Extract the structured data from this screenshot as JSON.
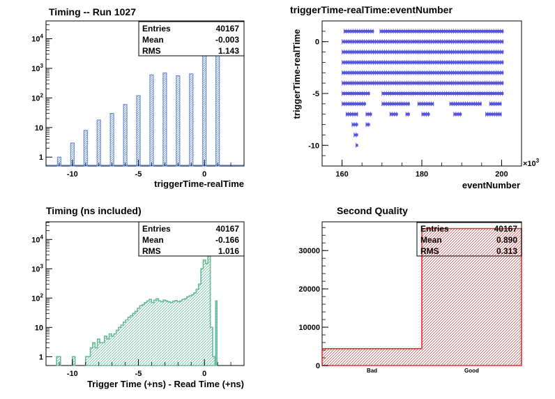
{
  "chart_data": [
    {
      "id": "p1",
      "type": "bar",
      "title": "Timing -- Run 1027",
      "xlabel": "triggerTime-realTime",
      "ylabel": "",
      "xlim": [
        -12,
        3
      ],
      "ylim": [
        0.5,
        40000
      ],
      "log_y": true,
      "grid": false,
      "bar_color": "#6f8fd0",
      "x_ticks": [
        -10,
        -5,
        0
      ],
      "y_ticks": [
        {
          "v": 1,
          "label": "1"
        },
        {
          "v": 10,
          "label": "10"
        },
        {
          "v": 100,
          "label": "10",
          "sup": "2"
        },
        {
          "v": 1000,
          "label": "10",
          "sup": "3"
        },
        {
          "v": 10000,
          "label": "10",
          "sup": "4"
        }
      ],
      "x": [
        -11,
        -10,
        -9,
        -8,
        -7,
        -6,
        -5,
        -4,
        -3,
        -2,
        -1,
        0,
        1
      ],
      "values": [
        1,
        3,
        8,
        18,
        30,
        60,
        120,
        600,
        700,
        560,
        650,
        4000,
        25000
      ],
      "stats": {
        "Entries": "40167",
        "Mean": "-0.003",
        "RMS": "1.143"
      }
    },
    {
      "id": "p2",
      "type": "scatter",
      "title": "triggerTime-realTime:eventNumber",
      "xlabel": "eventNumber",
      "ylabel": "triggerTime-realTime",
      "x_multiplier_label": "×10",
      "x_multiplier_sup": "3",
      "xlim": [
        155,
        205
      ],
      "ylim": [
        -12,
        2
      ],
      "marker_color": "#5555dd",
      "x_ticks": [
        160,
        180,
        200
      ],
      "y_ticks": [
        0,
        -5,
        -10
      ],
      "rows": [
        {
          "y": 1,
          "segments": [
            [
              160.5,
              168
            ],
            [
              169.5,
              200.5
            ]
          ]
        },
        {
          "y": 0,
          "segments": [
            [
              160,
              200.5
            ]
          ]
        },
        {
          "y": -1,
          "segments": [
            [
              160,
              200.5
            ]
          ]
        },
        {
          "y": -2,
          "segments": [
            [
              160,
              200.5
            ]
          ]
        },
        {
          "y": -3,
          "segments": [
            [
              160,
              200.5
            ]
          ]
        },
        {
          "y": -4,
          "segments": [
            [
              160,
              200.5
            ]
          ]
        },
        {
          "y": -5,
          "segments": [
            [
              160,
              167
            ],
            [
              170,
              200.5
            ]
          ]
        },
        {
          "y": -6,
          "segments": [
            [
              160,
              166
            ],
            [
              170,
              177
            ],
            [
              179,
              183
            ],
            [
              187,
              195
            ],
            [
              197,
              200
            ]
          ]
        },
        {
          "y": -7,
          "segments": [
            [
              161,
              164
            ],
            [
              166,
              167.5
            ],
            [
              172,
              174
            ],
            [
              176,
              177
            ],
            [
              180,
              182
            ],
            [
              188,
              190
            ],
            [
              196,
              200
            ]
          ]
        },
        {
          "y": -8,
          "segments": [
            [
              162.5,
              164
            ],
            [
              166,
              167
            ]
          ]
        },
        {
          "y": -9,
          "segments": [
            [
              163,
              164
            ]
          ]
        },
        {
          "y": -10,
          "segments": [
            [
              163.5,
              164
            ]
          ]
        }
      ]
    },
    {
      "id": "p3",
      "type": "area",
      "title": "Timing (ns included)",
      "xlabel": "Trigger Time (+ns) - Read Time (+ns)",
      "ylabel": "",
      "xlim": [
        -12,
        3
      ],
      "ylim": [
        0.5,
        40000
      ],
      "log_y": true,
      "line_color": "#66bb99",
      "x_ticks": [
        -10,
        -5,
        0
      ],
      "y_ticks": [
        {
          "v": 1,
          "label": "1"
        },
        {
          "v": 10,
          "label": "10"
        },
        {
          "v": 100,
          "label": "10",
          "sup": "2"
        },
        {
          "v": 1000,
          "label": "10",
          "sup": "3"
        },
        {
          "v": 10000,
          "label": "10",
          "sup": "4"
        }
      ],
      "segments": [
        {
          "from": -11.2,
          "to": -10.9,
          "values": [
            1
          ]
        },
        {
          "from": -10.0,
          "to": -9.8,
          "values": [
            1
          ]
        },
        {
          "from": -9.0,
          "to": 0.8,
          "values": [
            1,
            1,
            2,
            3,
            2,
            4,
            3,
            3,
            5,
            4,
            6,
            5,
            6,
            8,
            10,
            12,
            15,
            18,
            22,
            25,
            30,
            35,
            45,
            55,
            60,
            70,
            80,
            90,
            70,
            85,
            95,
            80,
            75,
            85,
            80,
            75,
            70,
            78,
            82,
            75,
            80,
            90,
            95,
            110,
            120,
            130,
            150,
            200,
            300,
            1000,
            2000,
            1500,
            40000,
            10,
            1
          ]
        },
        {
          "from": 0.85,
          "to": 0.95,
          "values": [
            80
          ]
        }
      ],
      "stats": {
        "Entries": "40167",
        "Mean": "-0.166",
        "RMS": "1.016"
      }
    },
    {
      "id": "p4",
      "type": "bar",
      "title": "Second Quality",
      "xlabel": "",
      "ylabel": "",
      "categories": [
        "Bad",
        "Good"
      ],
      "values": [
        4400,
        35750
      ],
      "ylim": [
        0,
        37500
      ],
      "line_color": "#dd3333",
      "y_ticks": [
        0,
        10000,
        20000,
        30000
      ],
      "stats": {
        "Entries": "40167",
        "Mean": "0.890",
        "RMS": "0.313"
      }
    }
  ]
}
